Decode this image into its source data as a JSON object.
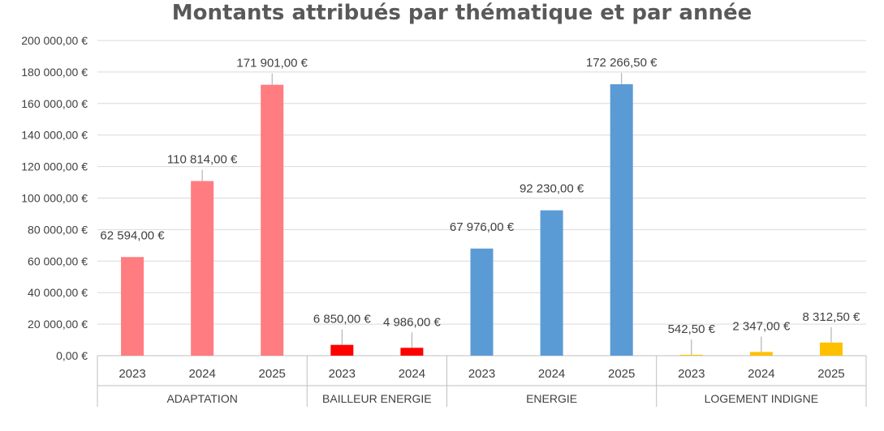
{
  "chart_data": {
    "type": "bar",
    "title": "Montants attribués par thématique et par année",
    "y_axis": {
      "min": 0,
      "max": 200000,
      "step": 20000,
      "tick_labels": [
        "0,00 €",
        "20 000,00 €",
        "40 000,00 €",
        "60 000,00 €",
        "80 000,00 €",
        "100 000,00 €",
        "120 000,00 €",
        "140 000,00 €",
        "160 000,00 €",
        "180 000,00 €",
        "200 000,00 €"
      ]
    },
    "grid": true,
    "legend": "none",
    "groups": [
      {
        "name": "ADAPTATION",
        "color": "#FF7C80",
        "bars": [
          {
            "year": "2023",
            "value": 62594.0,
            "label": "62 594,00 €"
          },
          {
            "year": "2024",
            "value": 110814.0,
            "label": "110 814,00 €"
          },
          {
            "year": "2025",
            "value": 171901.0,
            "label": "171 901,00 €"
          }
        ]
      },
      {
        "name": "BAILLEUR ENERGIE",
        "color": "#FF0000",
        "bars": [
          {
            "year": "2023",
            "value": 6850.0,
            "label": "6 850,00 €"
          },
          {
            "year": "2024",
            "value": 4986.0,
            "label": "4 986,00 €"
          }
        ]
      },
      {
        "name": "ENERGIE",
        "color": "#5B9BD5",
        "bars": [
          {
            "year": "2023",
            "value": 67976.0,
            "label": "67 976,00 €"
          },
          {
            "year": "2024",
            "value": 92230.0,
            "label": "92 230,00 €"
          },
          {
            "year": "2025",
            "value": 172266.5,
            "label": "172 266,50 €"
          }
        ]
      },
      {
        "name": "LOGEMENT INDIGNE",
        "color": "#FFC000",
        "bars": [
          {
            "year": "2023",
            "value": 542.5,
            "label": "542,50 €"
          },
          {
            "year": "2024",
            "value": 2347.0,
            "label": "2 347,00 €"
          },
          {
            "year": "2025",
            "value": 8312.5,
            "label": "8 312,50 €"
          }
        ]
      }
    ],
    "colors": {
      "gridline": "#D9D9D9",
      "axis_line": "#BFBFBF",
      "leader_line": "#A6A6A6",
      "text": "#404040",
      "title": "#595959"
    }
  }
}
